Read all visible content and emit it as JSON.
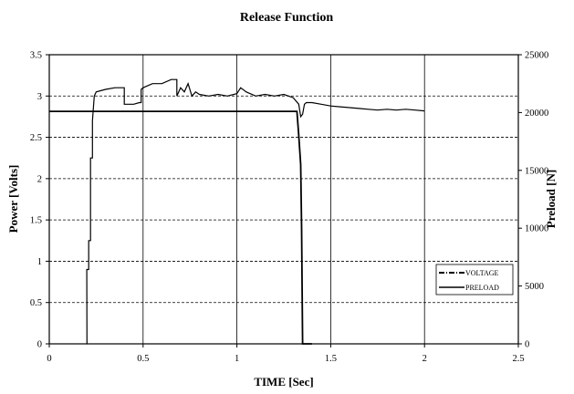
{
  "chart_data": {
    "type": "line",
    "title": "Release Function",
    "xlabel": "TIME [Sec]",
    "ylabel_left": "Power [Volts]",
    "ylabel_right": "Preload [N]",
    "xlim": [
      0,
      2.5
    ],
    "ylim_left": [
      0,
      3.5
    ],
    "ylim_right": [
      0,
      25000
    ],
    "x_ticks": [
      "0",
      "0.5",
      "1",
      "1.5",
      "2",
      "2.5"
    ],
    "y_left_ticks": [
      "0",
      "0.5",
      "1",
      "1.5",
      "2",
      "2.5",
      "3",
      "3.5"
    ],
    "y_right_ticks": [
      "0",
      "5000",
      "10000",
      "15000",
      "20000",
      "25000"
    ],
    "grid": true,
    "legend_position": "lower-right",
    "series": [
      {
        "name": "VOLTAGE",
        "axis": "left",
        "style": "dash-dot",
        "x": [
          0.2,
          0.201,
          0.2,
          0.21,
          0.21,
          0.22,
          0.22,
          0.23,
          0.23,
          0.24,
          0.25,
          0.3,
          0.35,
          0.4,
          0.4,
          0.45,
          0.48,
          0.49,
          0.49,
          0.5,
          0.55,
          0.6,
          0.65,
          0.68,
          0.68,
          0.7,
          0.72,
          0.74,
          0.76,
          0.78,
          0.8,
          0.85,
          0.9,
          0.95,
          1.0,
          1.02,
          1.05,
          1.1,
          1.15,
          1.2,
          1.25,
          1.3,
          1.33,
          1.34,
          1.35,
          1.36,
          1.37,
          1.4,
          1.45,
          1.5,
          1.55,
          1.6,
          1.65,
          1.7,
          1.75,
          1.8,
          1.85,
          1.9,
          1.95,
          2.0
        ],
        "values": [
          0.0,
          0.0,
          0.9,
          0.9,
          1.25,
          1.25,
          2.25,
          2.25,
          2.7,
          3.0,
          3.05,
          3.08,
          3.1,
          3.1,
          2.9,
          2.9,
          2.92,
          2.92,
          3.08,
          3.1,
          3.15,
          3.15,
          3.2,
          3.2,
          3.0,
          3.1,
          3.05,
          3.15,
          3.0,
          3.05,
          3.02,
          3.0,
          3.02,
          3.0,
          3.03,
          3.1,
          3.05,
          3.0,
          3.02,
          3.0,
          3.02,
          2.98,
          2.9,
          2.75,
          2.78,
          2.9,
          2.92,
          2.92,
          2.9,
          2.88,
          2.87,
          2.86,
          2.85,
          2.84,
          2.83,
          2.84,
          2.83,
          2.84,
          2.83,
          2.82
        ]
      },
      {
        "name": "PRELOAD",
        "axis": "right",
        "style": "solid",
        "x": [
          0,
          0.5,
          1.0,
          1.32,
          1.33,
          1.34,
          1.345,
          1.35,
          1.4
        ],
        "values": [
          20100,
          20100,
          20100,
          20100,
          18000,
          15500,
          10000,
          0,
          0
        ]
      }
    ]
  }
}
